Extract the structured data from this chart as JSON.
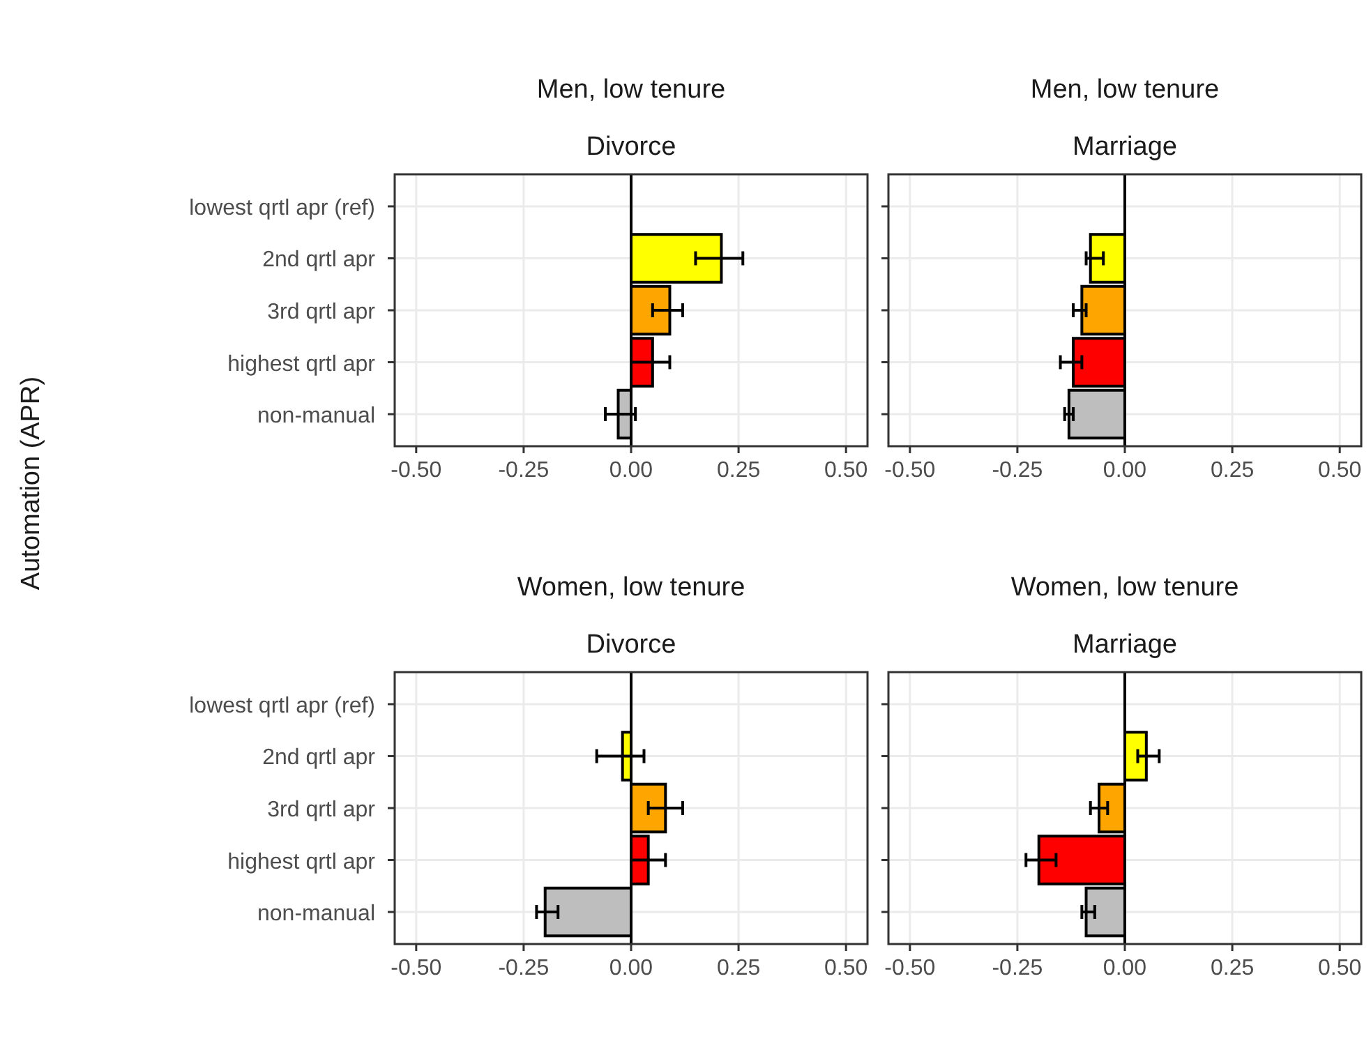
{
  "chart_data": [
    {
      "type": "bar",
      "orientation": "horizontal",
      "title": "Men, low tenure",
      "subtitle": "Divorce",
      "ylabel": "Automation (APR)",
      "categories": [
        "lowest qrtl apr (ref)",
        "2nd qrtl apr",
        "3rd qrtl apr",
        "highest qrtl apr",
        "non-manual"
      ],
      "values": [
        null,
        0.21,
        0.09,
        0.05,
        -0.03
      ],
      "errors": [
        null,
        [
          0.15,
          0.26
        ],
        [
          0.05,
          0.12
        ],
        [
          0.0,
          0.09
        ],
        [
          -0.06,
          0.01
        ]
      ],
      "colors": [
        null,
        "#ffff00",
        "#ffa500",
        "#ff0000",
        "#bebebe"
      ],
      "xlim": [
        -0.55,
        0.55
      ],
      "xticks": [
        {
          "value": -0.5,
          "label": "-0.50"
        },
        {
          "value": -0.25,
          "label": "-0.25"
        },
        {
          "value": 0,
          "label": "0.00"
        },
        {
          "value": 0.25,
          "label": "0.25"
        },
        {
          "value": 0.5,
          "label": "0.50"
        }
      ],
      "ref_lines": [
        {
          "axis": "x",
          "value": 0,
          "color": "#000000"
        }
      ],
      "grid": true
    },
    {
      "type": "bar",
      "orientation": "horizontal",
      "title": "Men, low tenure",
      "subtitle": "Marriage",
      "categories": [
        null,
        null,
        null,
        null,
        null
      ],
      "values": [
        null,
        -0.08,
        -0.1,
        -0.12,
        -0.13
      ],
      "errors": [
        null,
        [
          -0.09,
          -0.05
        ],
        [
          -0.12,
          -0.09
        ],
        [
          -0.15,
          -0.1
        ],
        [
          -0.14,
          -0.12
        ]
      ],
      "colors": [
        null,
        "#ffff00",
        "#ffa500",
        "#ff0000",
        "#bebebe"
      ],
      "xlim": [
        -0.55,
        0.55
      ],
      "xticks": [
        {
          "value": -0.5,
          "label": "-0.50"
        },
        {
          "value": -0.25,
          "label": "-0.25"
        },
        {
          "value": 0,
          "label": "0.00"
        },
        {
          "value": 0.25,
          "label": "0.25"
        },
        {
          "value": 0.5,
          "label": "0.50"
        }
      ],
      "ref_lines": [
        {
          "axis": "x",
          "value": 0,
          "color": "#000000"
        }
      ],
      "grid": true,
      "tick_labels": "x"
    },
    {
      "type": "bar",
      "orientation": "horizontal",
      "title": "Women, low tenure",
      "subtitle": "Divorce",
      "categories": [
        "lowest qrtl apr (ref)",
        "2nd qrtl apr",
        "3rd qrtl apr",
        "highest qrtl apr",
        "non-manual"
      ],
      "values": [
        null,
        -0.02,
        0.08,
        0.04,
        -0.2
      ],
      "errors": [
        null,
        [
          -0.08,
          0.03
        ],
        [
          0.04,
          0.12
        ],
        [
          0.0,
          0.08
        ],
        [
          -0.22,
          -0.17
        ]
      ],
      "colors": [
        null,
        "#ffff00",
        "#ffa500",
        "#ff0000",
        "#bebebe"
      ],
      "xlim": [
        -0.55,
        0.55
      ],
      "xticks": [
        {
          "value": -0.5,
          "label": "-0.50"
        },
        {
          "value": -0.25,
          "label": "-0.25"
        },
        {
          "value": 0,
          "label": "0.00"
        },
        {
          "value": 0.25,
          "label": "0.25"
        },
        {
          "value": 0.5,
          "label": "0.50"
        }
      ],
      "ref_lines": [
        {
          "axis": "x",
          "value": 0,
          "color": "#000000"
        }
      ],
      "grid": true
    },
    {
      "type": "bar",
      "orientation": "horizontal",
      "title": "Women, low tenure",
      "subtitle": "Marriage",
      "categories": [
        null,
        null,
        null,
        null,
        null
      ],
      "values": [
        null,
        0.05,
        -0.06,
        -0.2,
        -0.09
      ],
      "errors": [
        null,
        [
          0.03,
          0.08
        ],
        [
          -0.08,
          -0.04
        ],
        [
          -0.23,
          -0.16
        ],
        [
          -0.1,
          -0.07
        ]
      ],
      "colors": [
        null,
        "#ffff00",
        "#ffa500",
        "#ff0000",
        "#bebebe"
      ],
      "xlim": [
        -0.55,
        0.55
      ],
      "xticks": [
        {
          "value": -0.5,
          "label": "-0.50"
        },
        {
          "value": -0.25,
          "label": "-0.25"
        },
        {
          "value": 0,
          "label": "0.00"
        },
        {
          "value": 0.25,
          "label": "0.25"
        },
        {
          "value": 0.5,
          "label": "0.50"
        }
      ],
      "ref_lines": [
        {
          "axis": "x",
          "value": 0,
          "color": "#000000"
        }
      ],
      "grid": true,
      "tick_labels": "x"
    }
  ]
}
